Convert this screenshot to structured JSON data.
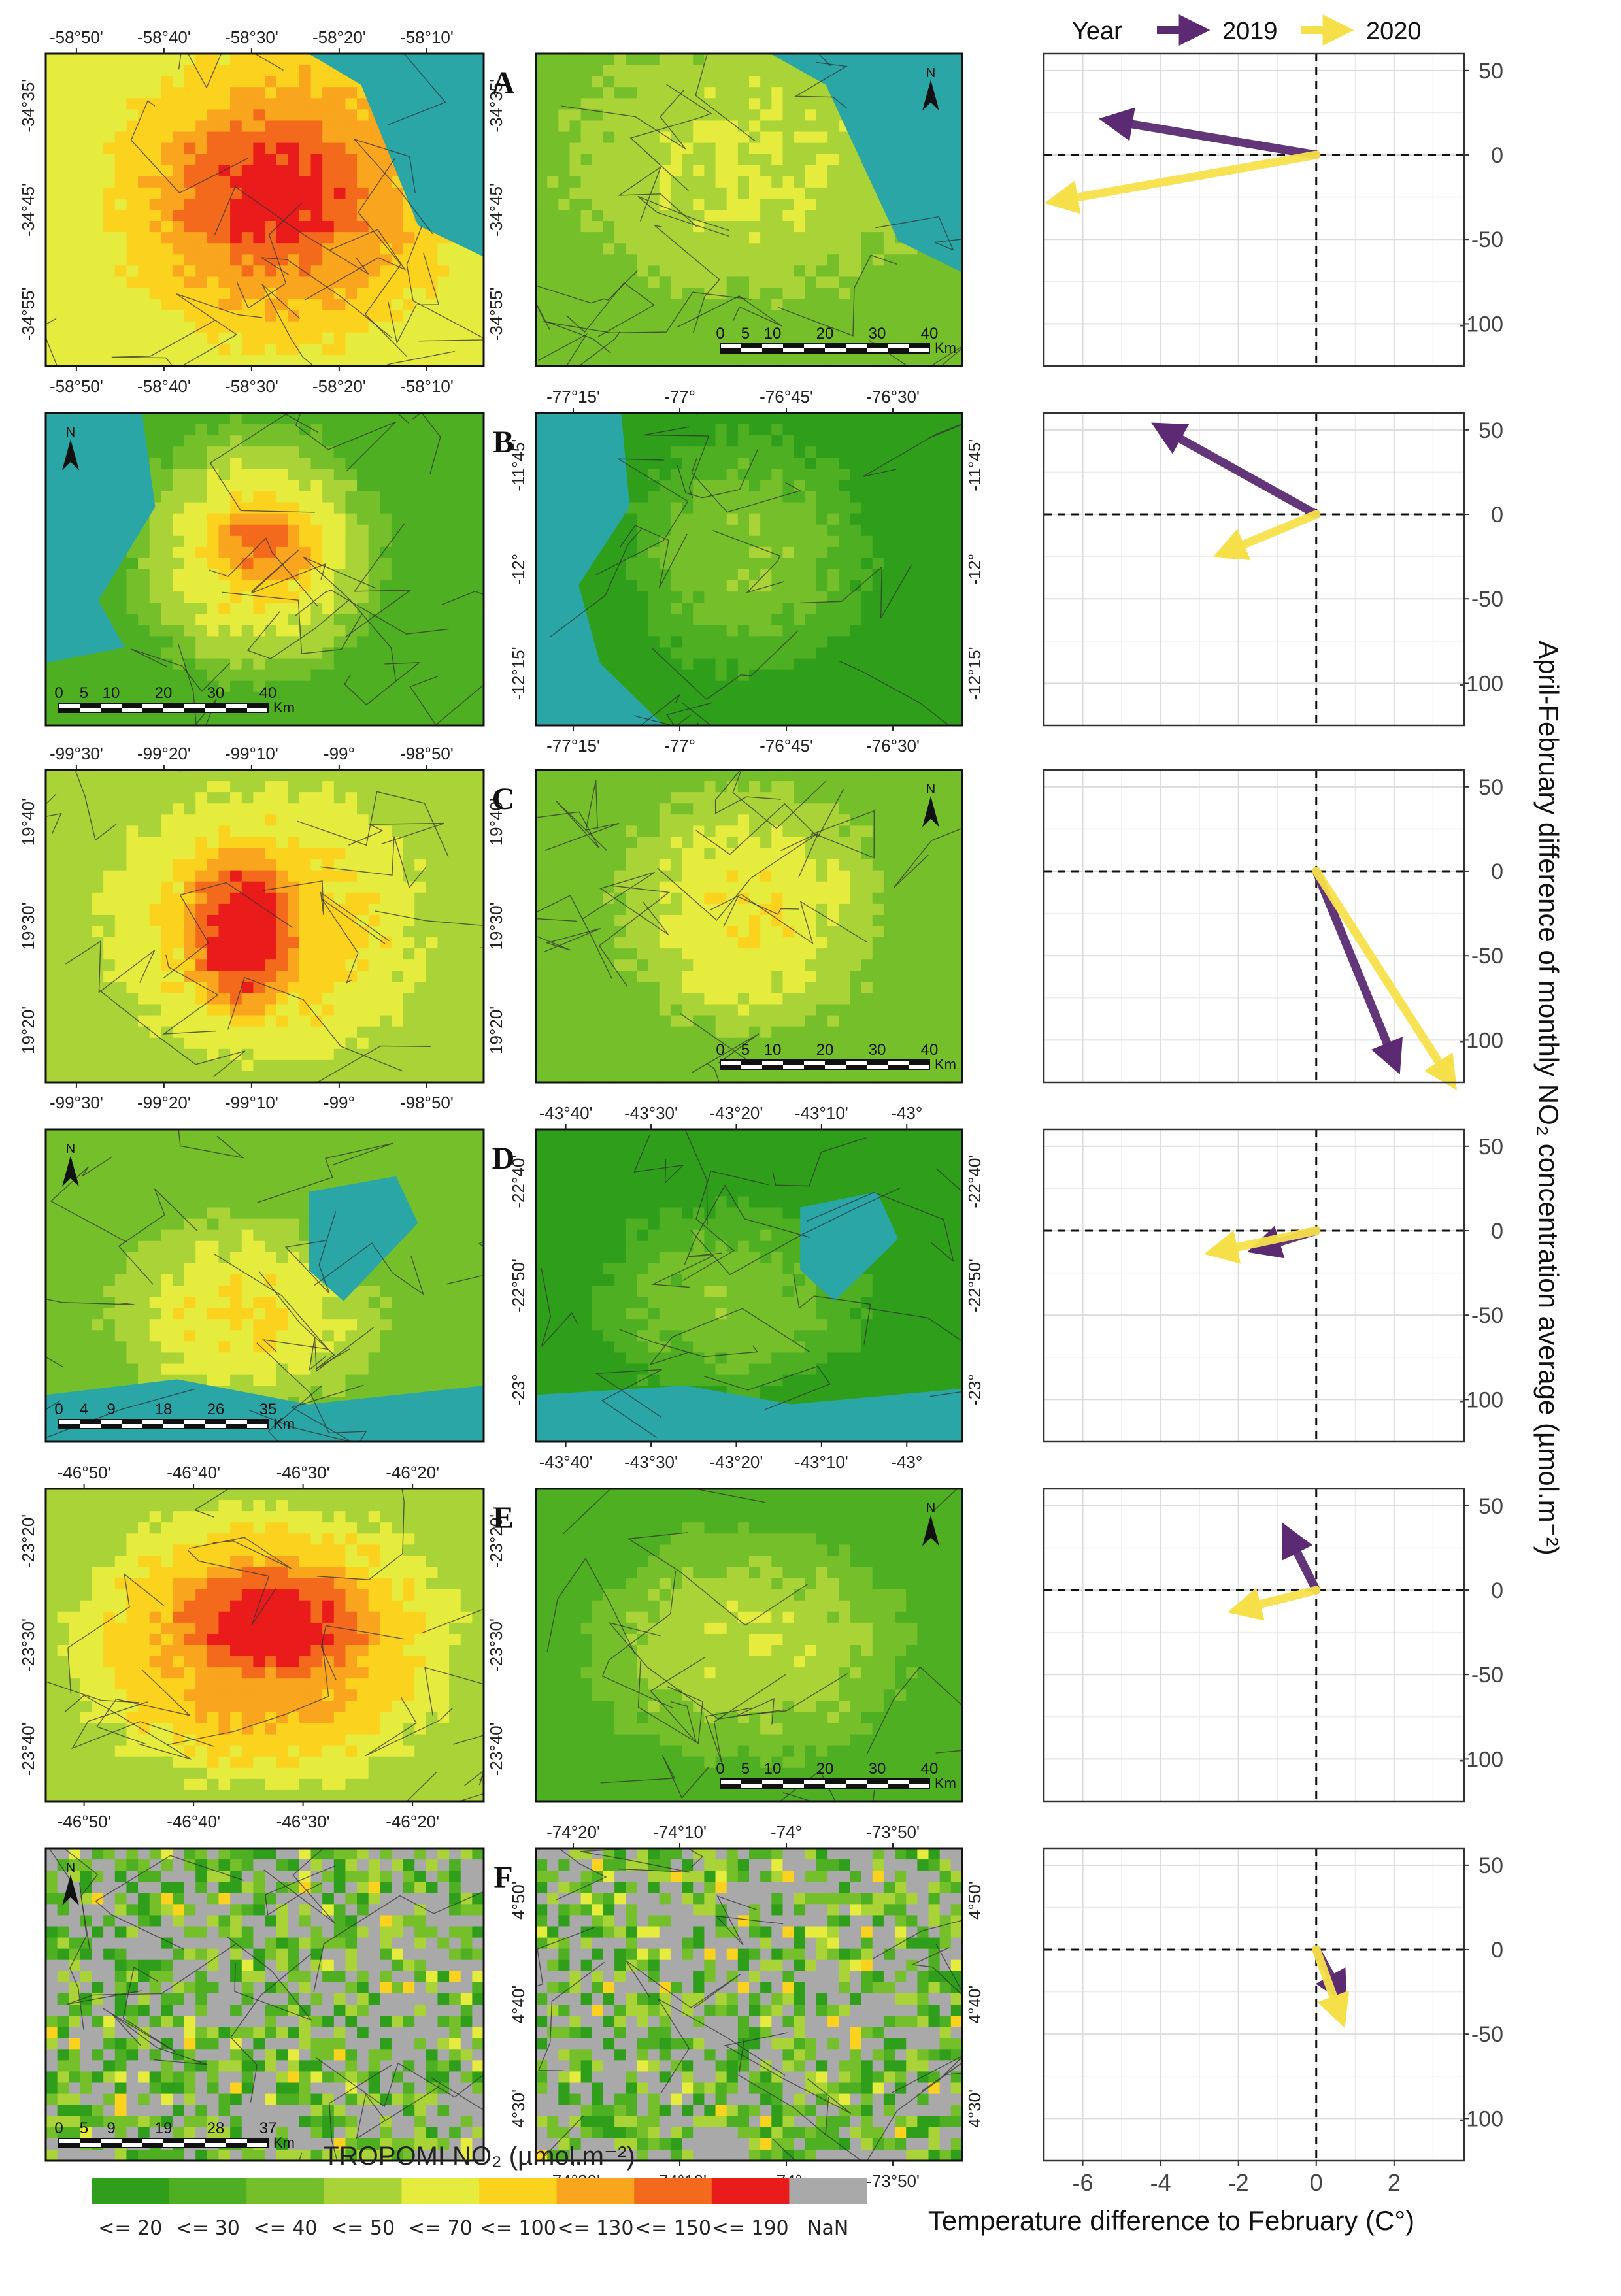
{
  "legend": {
    "title": "Year",
    "items": [
      {
        "label": "2019",
        "color": "#5b2a72"
      },
      {
        "label": "2020",
        "color": "#f5e04a"
      }
    ]
  },
  "colors": {
    "water": "#2aa6a6",
    "nan": "#a9a9a9",
    "arrow_2019": "#5b2a72",
    "arrow_2020": "#f5e04a"
  },
  "colorbar": {
    "title": "TROPOMI NO₂ (µmol.m⁻²)",
    "bins": [
      {
        "label": "<= 20",
        "color": "#2f9e1b"
      },
      {
        "label": "<= 30",
        "color": "#4faf22"
      },
      {
        "label": "<= 40",
        "color": "#74bf2a"
      },
      {
        "label": "<= 50",
        "color": "#a9d337"
      },
      {
        "label": "<= 70",
        "color": "#e5ec3e"
      },
      {
        "label": "<= 100",
        "color": "#fbd31f"
      },
      {
        "label": "<= 130",
        "color": "#f9a51d"
      },
      {
        "label": "<= 150",
        "color": "#f46a1c"
      },
      {
        "label": "<= 190",
        "color": "#ea1b1b"
      },
      {
        "label": "NaN",
        "color": "#a9a9a9"
      }
    ]
  },
  "chart_data": {
    "type": "line",
    "description_units": {
      "x": "C°",
      "y": "µmol.m⁻²"
    },
    "xlabel": "Temperature difference to February (C°)",
    "ylabel": "April-February difference of monthly NO₂ concentration average (µmol.m⁻²)",
    "xlim": [
      -7,
      3.8
    ],
    "ylim": [
      -125,
      60
    ],
    "x_ticks": [
      "-6",
      "-4",
      "-2",
      "0",
      "2"
    ],
    "x_tick_values": [
      -6,
      -4,
      -2,
      0,
      2
    ],
    "y_ticks": [
      "50",
      "0",
      "-50",
      "-100"
    ],
    "y_tick_values": [
      50,
      0,
      -50,
      -100
    ],
    "panels": [
      {
        "id": "A",
        "series": [
          {
            "name": "2019",
            "x": [
              0,
              -5.2
            ],
            "y": [
              0,
              20
            ]
          },
          {
            "name": "2020",
            "x": [
              0,
              -6.6
            ],
            "y": [
              0,
              -27
            ]
          }
        ]
      },
      {
        "id": "B",
        "series": [
          {
            "name": "2019",
            "x": [
              0,
              -3.9
            ],
            "y": [
              0,
              50
            ]
          },
          {
            "name": "2020",
            "x": [
              0,
              -2.3
            ],
            "y": [
              0,
              -22
            ]
          }
        ]
      },
      {
        "id": "C",
        "series": [
          {
            "name": "2019",
            "x": [
              0,
              2.0
            ],
            "y": [
              0,
              -112
            ]
          },
          {
            "name": "2020",
            "x": [
              0,
              3.4
            ],
            "y": [
              0,
              -122
            ]
          }
        ]
      },
      {
        "id": "D",
        "series": [
          {
            "name": "2019",
            "x": [
              0,
              -1.4
            ],
            "y": [
              0,
              -10
            ]
          },
          {
            "name": "2020",
            "x": [
              0,
              -2.5
            ],
            "y": [
              0,
              -12
            ]
          }
        ]
      },
      {
        "id": "E",
        "series": [
          {
            "name": "2019",
            "x": [
              0,
              -0.7
            ],
            "y": [
              0,
              32
            ]
          },
          {
            "name": "2020",
            "x": [
              0,
              -1.9
            ],
            "y": [
              0,
              -11
            ]
          }
        ]
      },
      {
        "id": "F",
        "series": [
          {
            "name": "2019",
            "x": [
              0,
              0.6
            ],
            "y": [
              0,
              -25
            ]
          },
          {
            "name": "2020",
            "x": [
              0,
              0.6
            ],
            "y": [
              0,
              -38
            ]
          }
        ]
      }
    ]
  },
  "maps": [
    {
      "id": "A",
      "left": {
        "top": [
          "-58°50'",
          "-58°40'",
          "-58°30'",
          "-58°20'",
          "-58°10'"
        ],
        "bottom": [
          "-58°50'",
          "-58°40'",
          "-58°30'",
          "-58°20'",
          "-58°10'"
        ],
        "left": [
          "-34°35'",
          "-34°45'",
          "-34°55'"
        ],
        "right": [
          "-34°35'",
          "-34°45'",
          "-34°55'"
        ],
        "scale": null,
        "north": false
      },
      "right": {
        "top": [],
        "bottom": [],
        "left": [],
        "right": [],
        "scale": {
          "labels": [
            "0",
            "5",
            "10",
            "20",
            "30",
            "40"
          ],
          "unit": "Km"
        },
        "north": true
      }
    },
    {
      "id": "B",
      "left": {
        "top": [],
        "bottom": [],
        "left": [],
        "right": [],
        "scale": {
          "labels": [
            "0",
            "5",
            "10",
            "20",
            "30",
            "40"
          ],
          "unit": "Km"
        },
        "north": true
      },
      "right": {
        "top": [
          "-77°15'",
          "-77°",
          "-76°45'",
          "-76°30'"
        ],
        "bottom": [
          "-77°15'",
          "-77°",
          "-76°45'",
          "-76°30'"
        ],
        "left": [
          "-11°45'",
          "-12°",
          "-12°15'"
        ],
        "right": [
          "-11°45'",
          "-12°",
          "-12°15'"
        ],
        "scale": null,
        "north": false
      }
    },
    {
      "id": "C",
      "left": {
        "top": [
          "-99°30'",
          "-99°20'",
          "-99°10'",
          "-99°",
          "-98°50'"
        ],
        "bottom": [
          "-99°30'",
          "-99°20'",
          "-99°10'",
          "-99°",
          "-98°50'"
        ],
        "left": [
          "19°40'",
          "19°30'",
          "19°20'"
        ],
        "right": [
          "19°40'",
          "19°30'",
          "19°20'"
        ],
        "scale": null,
        "north": false
      },
      "right": {
        "top": [],
        "bottom": [],
        "left": [],
        "right": [],
        "scale": {
          "labels": [
            "0",
            "5",
            "10",
            "20",
            "30",
            "40"
          ],
          "unit": "Km"
        },
        "north": true
      }
    },
    {
      "id": "D",
      "left": {
        "top": [],
        "bottom": [],
        "left": [],
        "right": [],
        "scale": {
          "labels": [
            "0",
            "4",
            "9",
            "18",
            "26",
            "35"
          ],
          "unit": "Km"
        },
        "north": true
      },
      "right": {
        "top": [
          "-43°40'",
          "-43°30'",
          "-43°20'",
          "-43°10'",
          "-43°"
        ],
        "bottom": [
          "-43°40'",
          "-43°30'",
          "-43°20'",
          "-43°10'",
          "-43°"
        ],
        "left": [
          "-22°40'",
          "-22°50'",
          "-23°"
        ],
        "right": [
          "-22°40'",
          "-22°50'",
          "-23°"
        ],
        "scale": null,
        "north": false
      }
    },
    {
      "id": "E",
      "left": {
        "top": [
          "-46°50'",
          "-46°40'",
          "-46°30'",
          "-46°20'"
        ],
        "bottom": [
          "-46°50'",
          "-46°40'",
          "-46°30'",
          "-46°20'"
        ],
        "left": [
          "-23°20'",
          "-23°30'",
          "-23°40'"
        ],
        "right": [
          "-23°20'",
          "-23°30'",
          "-23°40'"
        ],
        "scale": null,
        "north": false
      },
      "right": {
        "top": [],
        "bottom": [],
        "left": [],
        "right": [],
        "scale": {
          "labels": [
            "0",
            "5",
            "10",
            "20",
            "30",
            "40"
          ],
          "unit": "Km"
        },
        "north": true
      }
    },
    {
      "id": "F",
      "left": {
        "top": [],
        "bottom": [],
        "left": [],
        "right": [],
        "scale": {
          "labels": [
            "0",
            "5",
            "9",
            "19",
            "28",
            "37"
          ],
          "unit": "Km"
        },
        "north": true
      },
      "right": {
        "top": [
          "-74°20'",
          "-74°10'",
          "-74°",
          "-73°50'"
        ],
        "bottom": [
          "-74°20'",
          "-74°10'",
          "-74°",
          "-73°50'"
        ],
        "left": [
          "4°50'",
          "4°40'",
          "4°30'"
        ],
        "right": [
          "4°50'",
          "4°40'",
          "4°30'"
        ],
        "scale": null,
        "north": false
      }
    }
  ]
}
